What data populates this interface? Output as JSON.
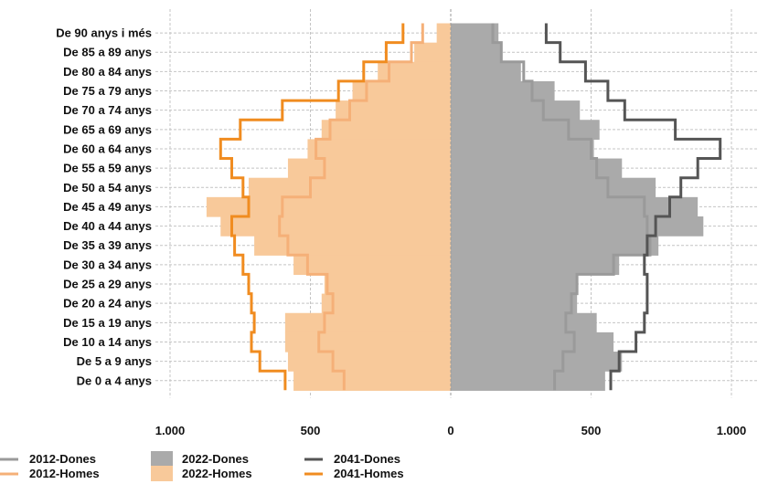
{
  "chart_data": {
    "type": "population-pyramid",
    "categories": [
      "De 90 anys i més",
      "De 85 a 89 anys",
      "De 80 a 84 anys",
      "De 75 a 79 anys",
      "De 70 a 74 anys",
      "De 65 a 69 anys",
      "De 60 a 64 anys",
      "De 55 a 59 anys",
      "De 50 a 54 anys",
      "De 45 a 49 anys",
      "De 40 a 44 anys",
      "De 35 a 39 anys",
      "De 30 a 34 anys",
      "De 25 a 29 anys",
      "De 20 a 24 anys",
      "De 15 a 19 anys",
      "De 10 a 14 anys",
      "De 5 a 9 anys",
      "De 0 a 4 anys"
    ],
    "x_ticks": [
      -1000,
      -500,
      0,
      500,
      1000
    ],
    "x_tick_labels": [
      "1.000",
      "500",
      "0",
      "500",
      "1.000"
    ],
    "xlim": [
      -1000,
      1000
    ],
    "grid": true,
    "legend_position": "bottom-left",
    "series": [
      {
        "name": "2022-Dones",
        "kind": "bar",
        "side": "right",
        "color": "#aaaaaa",
        "values": [
          170,
          180,
          250,
          370,
          460,
          530,
          510,
          610,
          730,
          880,
          900,
          740,
          600,
          450,
          450,
          520,
          580,
          610,
          550
        ]
      },
      {
        "name": "2022-Homes",
        "kind": "bar",
        "side": "left",
        "color": "#f8c99a",
        "values": [
          50,
          130,
          260,
          350,
          410,
          460,
          510,
          580,
          720,
          870,
          820,
          700,
          560,
          450,
          460,
          590,
          590,
          580,
          560
        ]
      },
      {
        "name": "2012-Dones",
        "kind": "step",
        "side": "right",
        "color": "#9a9a9a",
        "values": [
          150,
          180,
          260,
          290,
          330,
          420,
          500,
          520,
          560,
          690,
          700,
          710,
          580,
          450,
          430,
          410,
          440,
          400,
          370
        ]
      },
      {
        "name": "2012-Homes",
        "kind": "step",
        "side": "left",
        "color": "#f5b078",
        "values": [
          100,
          140,
          220,
          300,
          360,
          430,
          480,
          450,
          500,
          600,
          610,
          580,
          510,
          440,
          420,
          450,
          470,
          420,
          380
        ]
      },
      {
        "name": "2041-Dones",
        "kind": "step",
        "side": "right",
        "color": "#555555",
        "values": [
          340,
          390,
          480,
          560,
          620,
          800,
          960,
          880,
          820,
          780,
          730,
          700,
          690,
          700,
          700,
          690,
          660,
          600,
          570
        ]
      },
      {
        "name": "2041-Homes",
        "kind": "step",
        "side": "left",
        "color": "#f08c20",
        "values": [
          170,
          230,
          310,
          400,
          600,
          750,
          820,
          780,
          740,
          720,
          780,
          770,
          740,
          720,
          710,
          700,
          710,
          680,
          590
        ]
      }
    ],
    "legend": [
      "2012-Dones",
      "2022-Dones",
      "2041-Dones",
      "2012-Homes",
      "2022-Homes",
      "2041-Homes"
    ]
  }
}
